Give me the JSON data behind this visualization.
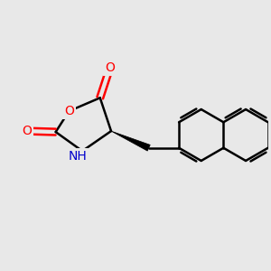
{
  "background_color": "#e8e8e8",
  "bond_color": "#000000",
  "oxygen_color": "#ff0000",
  "nitrogen_color": "#0000cc",
  "bond_width": 1.8,
  "figsize": [
    3.0,
    3.0
  ],
  "dpi": 100,
  "xlim": [
    -2.8,
    3.2
  ],
  "ylim": [
    -2.0,
    2.0
  ]
}
